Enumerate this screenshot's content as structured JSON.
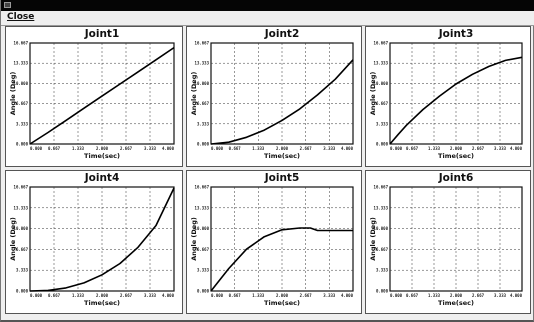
{
  "window": {
    "menu": {
      "close_label": "Close"
    }
  },
  "chart_data": [
    {
      "type": "line",
      "title": "Joint1",
      "xlabel": "Time(sec)",
      "ylabel": "Angle (Deg)",
      "x_ticks": [
        "0.000",
        "0.667",
        "1.333",
        "2.000",
        "2.667",
        "3.333",
        "4.000"
      ],
      "y_ticks": [
        "0.000",
        "3.333",
        "6.667",
        "10.000",
        "13.333",
        "16.667"
      ],
      "xlim": [
        0,
        4
      ],
      "ylim": [
        0,
        16.667
      ],
      "series": [
        {
          "x": [
            0,
            0.5,
            1,
            1.5,
            2,
            2.5,
            3,
            3.5,
            4
          ],
          "y": [
            0,
            1.9,
            3.9,
            5.9,
            7.9,
            9.9,
            11.9,
            13.9,
            15.9
          ]
        }
      ]
    },
    {
      "type": "line",
      "title": "Joint2",
      "xlabel": "Time(sec)",
      "ylabel": "Angle (Deg)",
      "x_ticks": [
        "0.000",
        "0.667",
        "1.333",
        "2.000",
        "2.667",
        "3.333",
        "4.000"
      ],
      "y_ticks": [
        "0.000",
        "3.333",
        "6.667",
        "10.000",
        "13.333",
        "16.667"
      ],
      "xlim": [
        0,
        4
      ],
      "ylim": [
        0,
        16.667
      ],
      "series": [
        {
          "x": [
            0,
            0.5,
            1,
            1.5,
            2,
            2.5,
            3,
            3.5,
            4
          ],
          "y": [
            0,
            0.3,
            1.1,
            2.3,
            3.9,
            5.8,
            8.1,
            10.7,
            13.9
          ]
        }
      ]
    },
    {
      "type": "line",
      "title": "Joint3",
      "xlabel": "Time(sec)",
      "ylabel": "Angle (Deg)",
      "x_ticks": [
        "0.000",
        "0.667",
        "1.333",
        "2.000",
        "2.667",
        "3.333",
        "4.000"
      ],
      "y_ticks": [
        "0.000",
        "3.333",
        "6.667",
        "10.000",
        "13.333",
        "16.667"
      ],
      "xlim": [
        0,
        4
      ],
      "ylim": [
        0,
        16.667
      ],
      "series": [
        {
          "x": [
            0,
            0.25,
            0.5,
            1,
            1.5,
            2,
            2.5,
            3,
            3.5,
            4
          ],
          "y": [
            0,
            1.6,
            3.1,
            5.7,
            7.9,
            9.9,
            11.5,
            12.8,
            13.8,
            14.3
          ]
        }
      ]
    },
    {
      "type": "line",
      "title": "Joint4",
      "xlabel": "Time(sec)",
      "ylabel": "Angle (Deg)",
      "x_ticks": [
        "0.000",
        "0.667",
        "1.333",
        "2.000",
        "2.667",
        "3.333",
        "4.000"
      ],
      "y_ticks": [
        "0.000",
        "3.333",
        "6.667",
        "10.000",
        "13.333",
        "16.667"
      ],
      "xlim": [
        0,
        4
      ],
      "ylim": [
        0,
        16.667
      ],
      "series": [
        {
          "x": [
            0,
            0.5,
            1,
            1.5,
            2,
            2.5,
            3,
            3.5,
            4
          ],
          "y": [
            0,
            0.1,
            0.5,
            1.3,
            2.6,
            4.4,
            7.0,
            10.5,
            16.5
          ]
        }
      ]
    },
    {
      "type": "line",
      "title": "Joint5",
      "xlabel": "Time(sec)",
      "ylabel": "Angle (Deg)",
      "x_ticks": [
        "0.000",
        "0.667",
        "1.333",
        "2.000",
        "2.667",
        "3.333",
        "4.000"
      ],
      "y_ticks": [
        "0.000",
        "3.333",
        "6.667",
        "10.000",
        "13.333",
        "16.667"
      ],
      "xlim": [
        0,
        4
      ],
      "ylim": [
        0,
        16.667
      ],
      "series": [
        {
          "x": [
            0,
            0.5,
            1,
            1.5,
            2,
            2.5,
            2.8,
            3,
            3.5,
            4
          ],
          "y": [
            0,
            3.6,
            6.7,
            8.7,
            9.8,
            10.1,
            10.1,
            9.7,
            9.7,
            9.7
          ]
        }
      ]
    },
    {
      "type": "line",
      "title": "Joint6",
      "xlabel": "Time(sec)",
      "ylabel": "Angle (Deg)",
      "x_ticks": [
        "0.000",
        "0.667",
        "1.333",
        "2.000",
        "2.667",
        "3.333",
        "4.000"
      ],
      "y_ticks": [
        "0.000",
        "3.333",
        "6.667",
        "10.000",
        "13.333",
        "16.667"
      ],
      "xlim": [
        0,
        4
      ],
      "ylim": [
        0,
        16.667
      ],
      "series": []
    }
  ]
}
